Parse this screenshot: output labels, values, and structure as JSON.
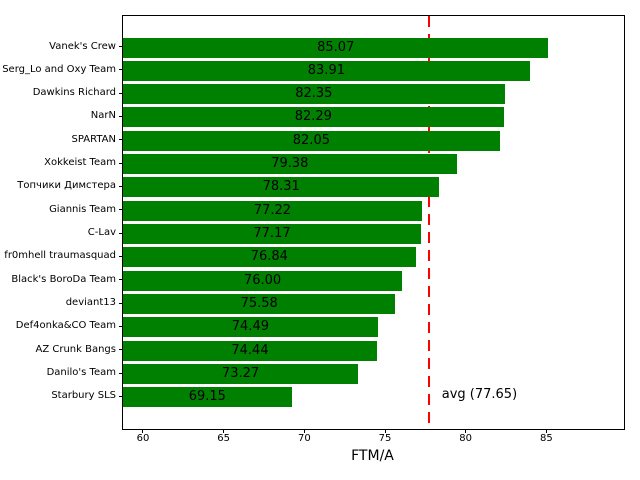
{
  "chart_data": {
    "type": "bar",
    "orientation": "horizontal",
    "xlabel": "FTM/A",
    "categories": [
      "Vanek's Crew",
      "Serg_Lo and Oxy Team",
      "Dawkins Richard",
      "NarN",
      "SPARTAN",
      "Xokkeist Team",
      "Топчики Димстера",
      "Giannis Team",
      "C-Lav",
      "fr0mhell traumasquad",
      "Black's BoroDa Team",
      "deviant13",
      "Def4onka&CO Team",
      "AZ Crunk Bangs",
      "Danilo's Team",
      "Starbury SLS"
    ],
    "values": [
      85.07,
      83.91,
      82.35,
      82.29,
      82.05,
      79.38,
      78.31,
      77.22,
      77.17,
      76.84,
      76.0,
      75.58,
      74.49,
      74.44,
      73.27,
      69.15
    ],
    "value_label_decimals": 2,
    "xlim": [
      58.7,
      89.75
    ],
    "xticks": [
      60,
      65,
      70,
      75,
      80,
      85
    ],
    "grid": false,
    "legend": false,
    "avg_line": {
      "value": 77.65,
      "label": "avg (77.65)",
      "color": "#ff0000",
      "style": "dashed"
    },
    "bar_color": "#008000",
    "text_color": "#000000",
    "background_color": "#ffffff"
  }
}
